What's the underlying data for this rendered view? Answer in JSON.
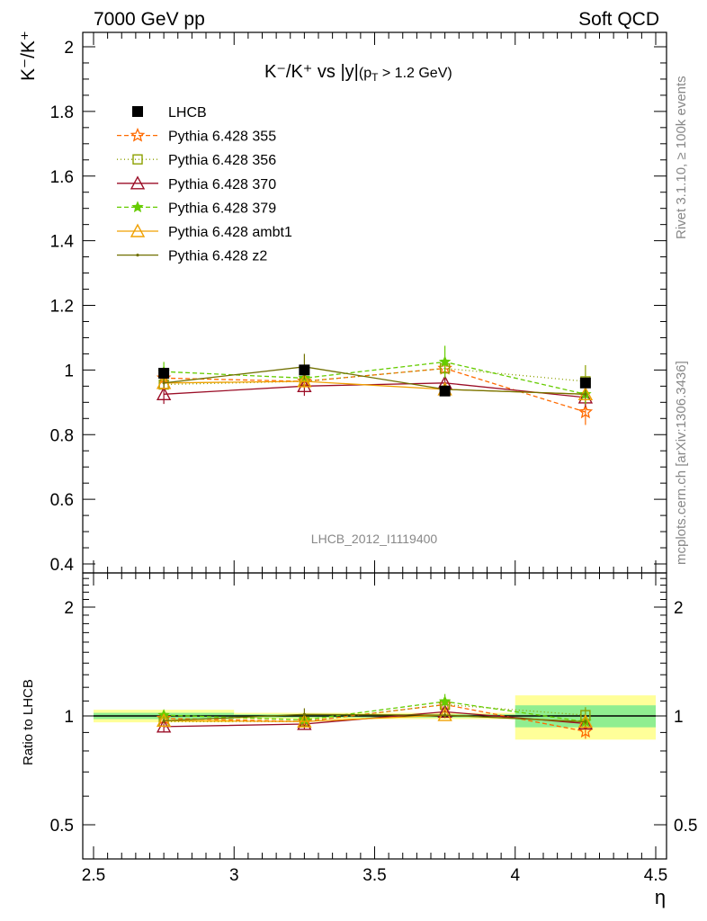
{
  "header": {
    "left": "7000 GeV pp",
    "right": "Soft QCD"
  },
  "side_labels": {
    "rivet": "Rivet 3.1.10, ≥ 100k events",
    "mcplots": "mcplots.cern.ch [arXiv:1306.3436]"
  },
  "chart_data": [
    {
      "type": "line",
      "title_main": "K⁻/K⁺ vs |y|",
      "title_sub": "(p",
      "title_sub_index": "T",
      "title_sub_rest": " > 1.2 GeV)",
      "ylabel_main": "K⁻/K⁺",
      "watermark": "LHCB_2012_I1119400",
      "xlim": [
        2.5,
        4.5
      ],
      "ylim": [
        0.4,
        2.05
      ],
      "y_ticks": [
        "0.4",
        "0.6",
        "0.8",
        "1",
        "1.2",
        "1.4",
        "1.6",
        "1.8",
        "2"
      ],
      "y_tick_values": [
        0.4,
        0.6,
        0.8,
        1.0,
        1.2,
        1.4,
        1.6,
        1.8,
        2.0
      ],
      "x": [
        2.75,
        3.25,
        3.75,
        4.25
      ],
      "data": {
        "name": "LHCB",
        "values": [
          0.99,
          1.0,
          0.935,
          0.96
        ],
        "errors": [
          0.01,
          0.01,
          0.012,
          0.012
        ],
        "color": "#000000"
      },
      "series": [
        {
          "name": "Pythia 6.428 355",
          "values": [
            0.975,
            0.965,
            1.005,
            0.87
          ],
          "errors": [
            0.015,
            0.015,
            0.015,
            0.04
          ],
          "color": "#ff6a00",
          "dash": "5,3",
          "marker": "star-open"
        },
        {
          "name": "Pythia 6.428 356",
          "values": [
            0.955,
            0.965,
            1.005,
            0.965
          ],
          "errors": [
            0.015,
            0.015,
            0.015,
            0.05
          ],
          "color": "#8ca000",
          "dash": "1,3",
          "marker": "square-open"
        },
        {
          "name": "Pythia 6.428 370",
          "values": [
            0.925,
            0.95,
            0.96,
            0.915
          ],
          "errors": [
            0.03,
            0.03,
            0.03,
            0.03
          ],
          "color": "#9b0e27",
          "dash": "",
          "marker": "triangle-open"
        },
        {
          "name": "Pythia 6.428 379",
          "values": [
            0.995,
            0.975,
            1.025,
            0.925
          ],
          "errors": [
            0.03,
            0.03,
            0.05,
            0.03
          ],
          "color": "#66cc00",
          "dash": "5,3",
          "marker": "star-filled"
        },
        {
          "name": "Pythia 6.428 ambt1",
          "values": [
            0.96,
            0.965,
            0.94,
            0.925
          ],
          "errors": [
            0.02,
            0.02,
            0.02,
            0.02
          ],
          "color": "#f0a000",
          "dash": "",
          "marker": "triangle-open"
        },
        {
          "name": "Pythia 6.428 z2",
          "values": [
            0.96,
            1.01,
            0.94,
            0.925
          ],
          "errors": [
            0.015,
            0.04,
            0.015,
            0.015
          ],
          "color": "#707000",
          "dash": "",
          "marker": "dot"
        }
      ]
    },
    {
      "type": "line",
      "ylabel": "Ratio to LHCB",
      "xlabel": "η",
      "xlim": [
        2.5,
        4.5
      ],
      "ylim": [
        0.4,
        2.5
      ],
      "log_y": true,
      "x_ticks": [
        "2.5",
        "3",
        "3.5",
        "4",
        "4.5"
      ],
      "x_tick_values": [
        2.5,
        3.0,
        3.5,
        4.0,
        4.5
      ],
      "y_ticks": [
        "0.5",
        "1",
        "2"
      ],
      "y_tick_values": [
        0.5,
        1.0,
        2.0
      ],
      "data_bands": [
        {
          "xlo": 2.5,
          "xhi": 3.0,
          "stat": 0.02,
          "total": 0.04
        },
        {
          "xlo": 3.0,
          "xhi": 3.5,
          "stat": 0.01,
          "total": 0.02
        },
        {
          "xlo": 3.5,
          "xhi": 4.0,
          "stat": 0.01,
          "total": 0.02
        },
        {
          "xlo": 4.0,
          "xhi": 4.5,
          "stat": 0.07,
          "total": 0.14
        }
      ],
      "band_colors": {
        "stat": "#90ee90",
        "total": "#ffff99"
      }
    }
  ]
}
